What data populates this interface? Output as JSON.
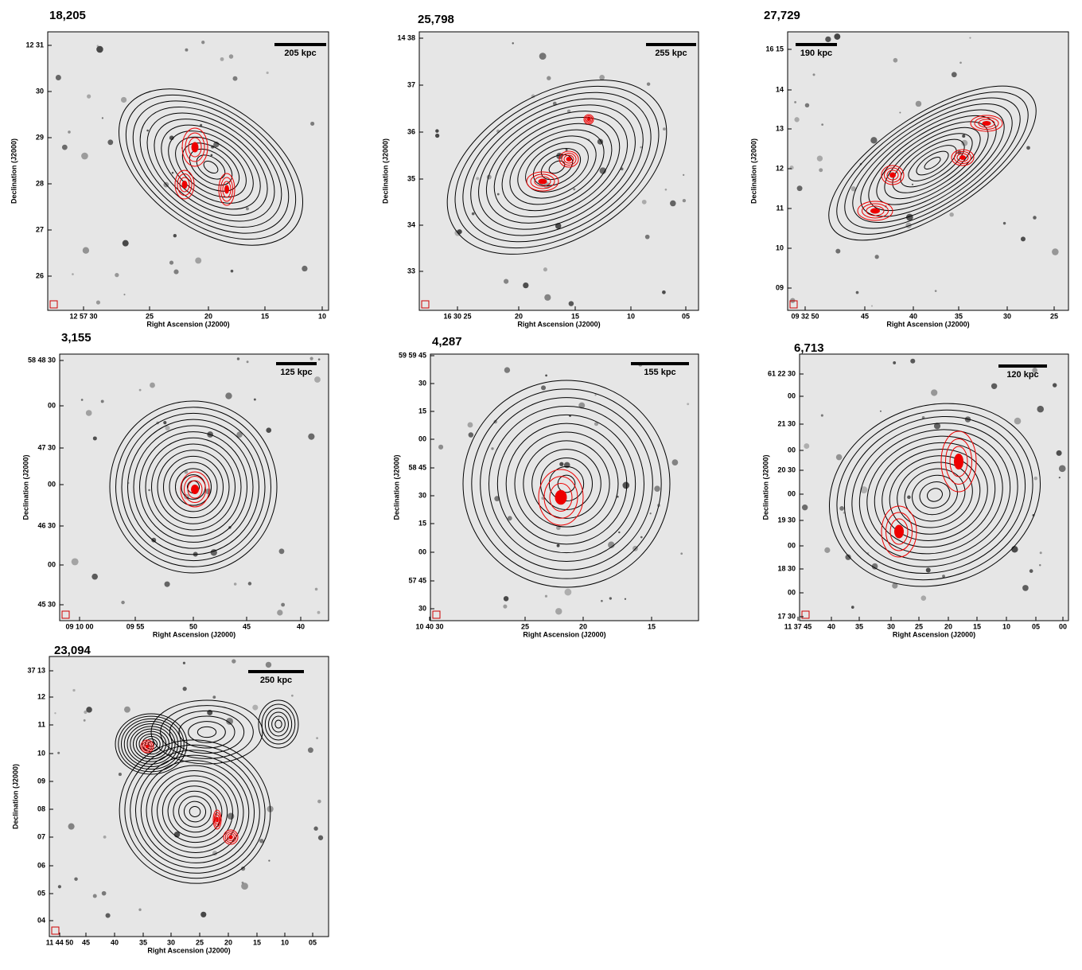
{
  "panels": [
    {
      "title": "18,205",
      "scale_bar": "205 kpc",
      "x_label": "Right Ascension (J2000)",
      "y_label": "Declination (J2000)",
      "yticks": [
        "12 31",
        "30",
        "29",
        "28",
        "27",
        "26"
      ],
      "xticks": [
        "12 57 30",
        "25",
        "20",
        "15",
        "10"
      ]
    },
    {
      "title": "25,798",
      "scale_bar": "255 kpc",
      "x_label": "Right Ascension (J2000)",
      "y_label": "Declination (J2000)",
      "yticks": [
        "14 38",
        "37",
        "36",
        "35",
        "34",
        "33"
      ],
      "xticks": [
        "16 30 25",
        "20",
        "15",
        "10",
        "05"
      ]
    },
    {
      "title": "27,729",
      "scale_bar": "190 kpc",
      "x_label": "Right Ascension (J2000)",
      "y_label": "Declination (J2000)",
      "yticks": [
        "16 15",
        "14",
        "13",
        "12",
        "11",
        "10",
        "09"
      ],
      "xticks": [
        "09 32 50",
        "45",
        "40",
        "35",
        "30",
        "25"
      ]
    },
    {
      "title": "3,155",
      "scale_bar": "125 kpc",
      "x_label": "Right Ascension (J2000)",
      "y_label": "Declination (J2000)",
      "yticks": [
        "58 48 30",
        "00",
        "47 30",
        "00",
        "46 30",
        "00",
        "45 30"
      ],
      "xticks": [
        "09 10 00",
        "09 55",
        "50",
        "45",
        "40"
      ]
    },
    {
      "title": "4,287",
      "scale_bar": "155 kpc",
      "x_label": "Right Ascension (J2000)",
      "y_label": "Declination (J2000)",
      "yticks": [
        "59 59 45",
        "30",
        "15",
        "00",
        "58 45",
        "30",
        "15",
        "00",
        "57 45",
        "30"
      ],
      "xticks": [
        "10 40 30",
        "25",
        "20",
        "15"
      ]
    },
    {
      "title": "6,713",
      "scale_bar": "120 kpc",
      "x_label": "Right Ascension (J2000)",
      "y_label": "Declination (J2000)",
      "yticks": [
        "61 22 30",
        "00",
        "21 30",
        "00",
        "20 30",
        "00",
        "19 30",
        "00",
        "18 30",
        "00",
        "17 30"
      ],
      "xticks": [
        "11 37 45",
        "40",
        "35",
        "30",
        "25",
        "20",
        "15",
        "10",
        "05",
        "00"
      ]
    },
    {
      "title": "23,094",
      "scale_bar": "250 kpc",
      "x_label": "Right Ascension (J2000)",
      "y_label": "Declination (J2000)",
      "yticks": [
        "37 13",
        "12",
        "11",
        "10",
        "09",
        "08",
        "07",
        "06",
        "05",
        "04"
      ],
      "xticks": [
        "11 44 50",
        "45",
        "40",
        "35",
        "30",
        "25",
        "20",
        "15",
        "10",
        "05"
      ]
    }
  ]
}
